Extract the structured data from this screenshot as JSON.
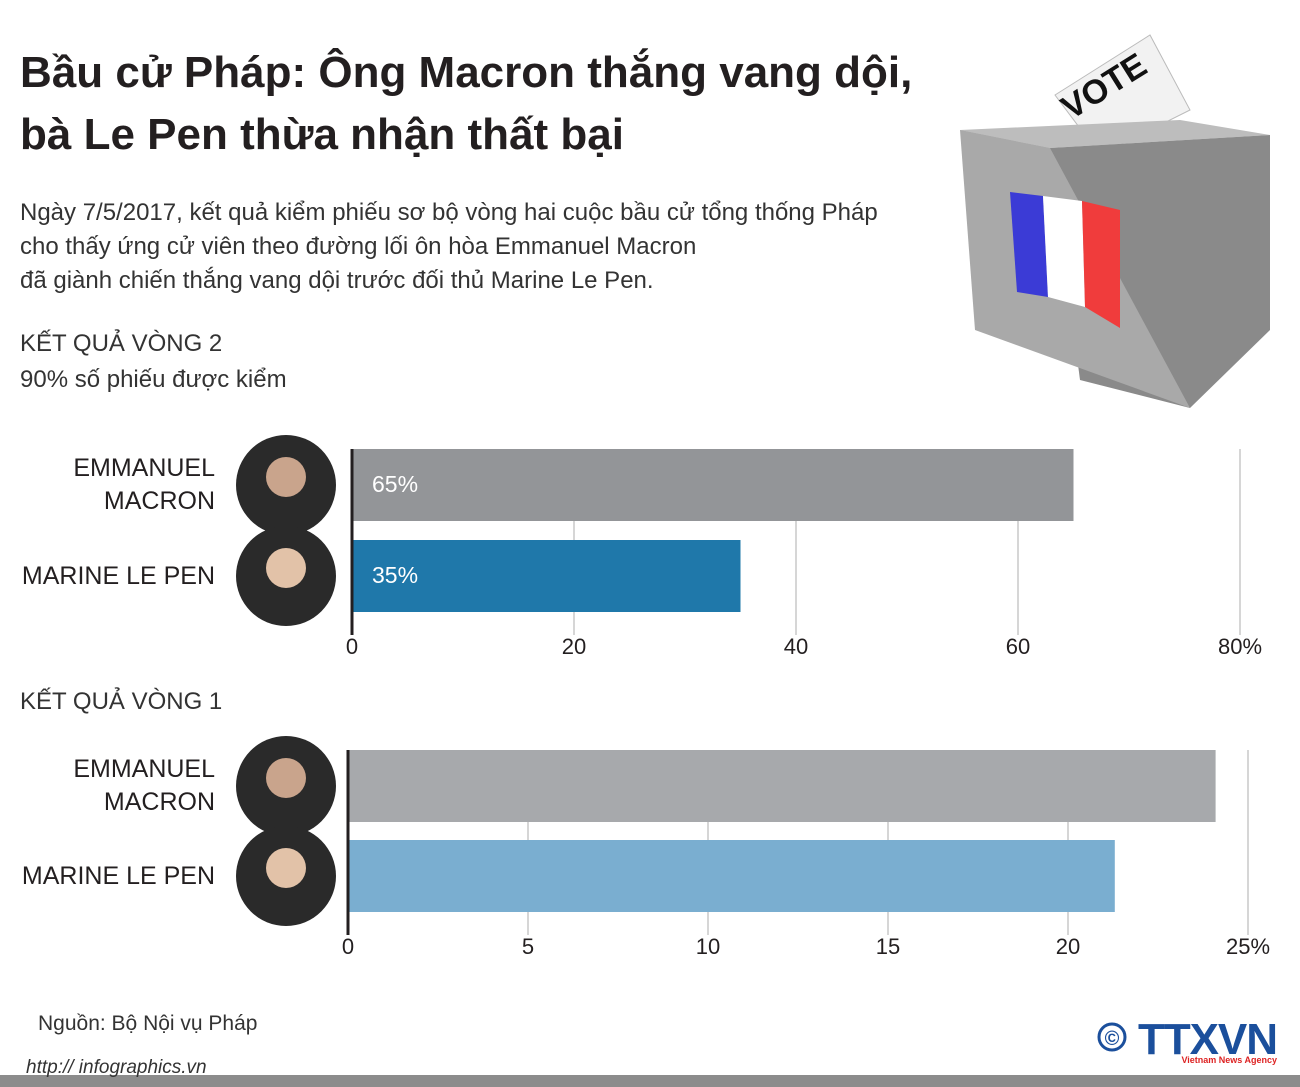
{
  "title": [
    "Bầu cử Pháp: Ông Macron thắng vang dội,",
    "bà Le Pen thừa nhận thất bại"
  ],
  "description": [
    "Ngày 7/5/2017, kết quả kiểm phiếu sơ bộ vòng hai cuộc bầu cử tổng thống Pháp",
    "cho thấy ứng cử viên theo đường lối ôn hòa Emmanuel Macron",
    "đã giành chiến thắng vang dội trước đối thủ Marine Le Pen."
  ],
  "ballot_text": "VOTE",
  "source": "Nguồn: Bộ Nội vụ Pháp",
  "url": "http:// infographics.vn",
  "logo": {
    "symbol": "©",
    "name": "TTXVN",
    "tagline": "Vietnam News Agency"
  },
  "chart_data": [
    {
      "type": "hbar",
      "title": "KẾT QUẢ VÒNG 2",
      "subtitle": "90% số phiếu được kiểm",
      "categories": [
        "EMMANUEL\nMACRON",
        "MARINE LE PEN"
      ],
      "values": [
        65,
        35
      ],
      "value_labels": [
        "65%",
        "35%"
      ],
      "colors": [
        "#939598",
        "#1f78aa"
      ],
      "xlim": [
        0,
        80
      ],
      "xticks": [
        0,
        20,
        40,
        60,
        {
          "value": 80,
          "label": "80%"
        }
      ],
      "grid": true
    },
    {
      "type": "hbar",
      "title": "KẾT QUẢ VÒNG 1",
      "categories": [
        "EMMANUEL\nMACRON",
        "MARINE LE PEN"
      ],
      "values": [
        24.1,
        21.3
      ],
      "colors": [
        "#a7a9ac",
        "#7aaed0"
      ],
      "xlim": [
        0,
        25
      ],
      "xticks": [
        0,
        5,
        10,
        15,
        20,
        {
          "value": 25,
          "label": "25%"
        }
      ],
      "grid": true
    }
  ]
}
